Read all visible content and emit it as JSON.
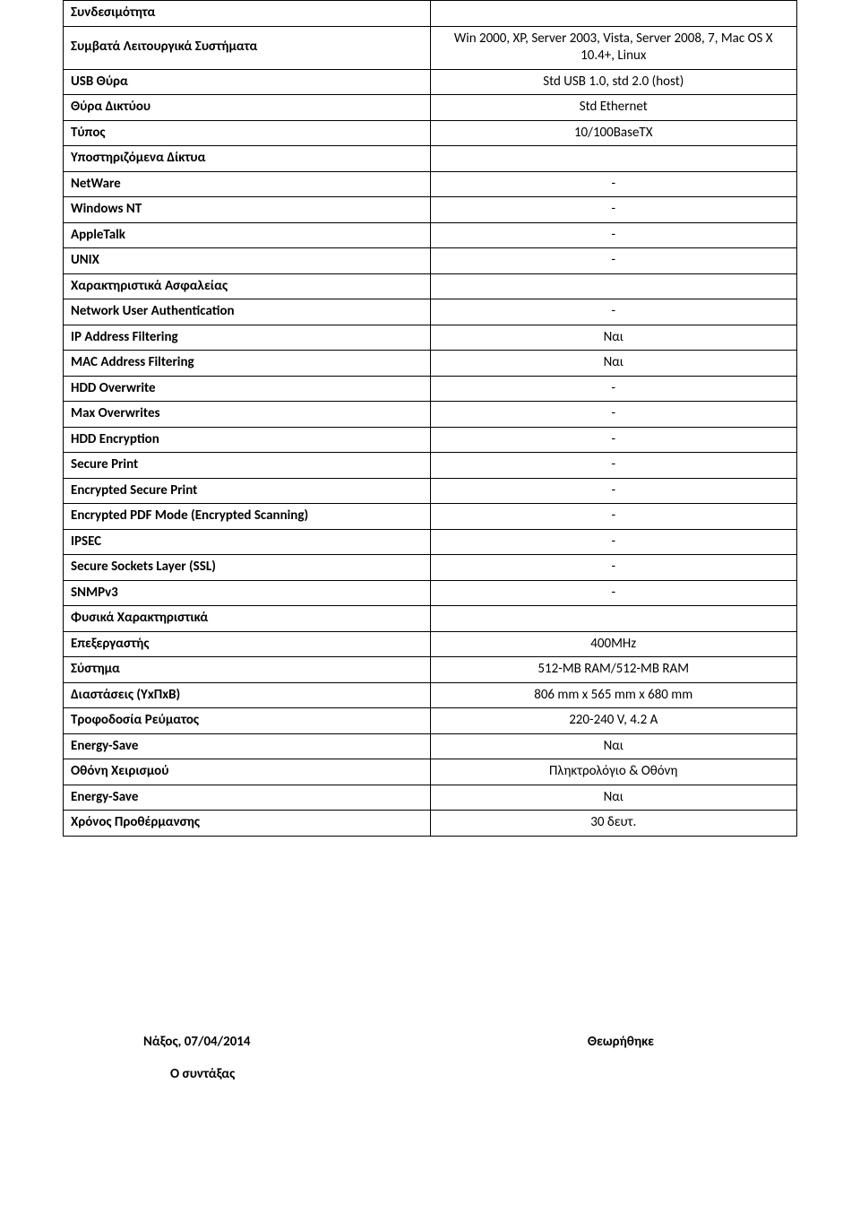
{
  "table": {
    "rows": [
      {
        "label": "Συνδεσιμότητα",
        "value": null
      },
      {
        "label": "Συμβατά Λειτουργικά Συστήματα",
        "value": "Win 2000, XP, Server 2003, Vista, Server 2008, 7, Mac OS X 10.4+, Linux"
      },
      {
        "label": "USB Θύρα",
        "value": "Std USB 1.0, std 2.0 (host)"
      },
      {
        "label": "Θύρα Δικτύου",
        "value": "Std Ethernet"
      },
      {
        "label": "Τύπος",
        "value": "10/100BaseTX"
      },
      {
        "label": "Υποστηριζόμενα Δίκτυα",
        "value": ""
      },
      {
        "label": "NetWare",
        "value": "-"
      },
      {
        "label": "Windows NT",
        "value": "-"
      },
      {
        "label": "AppleTalk",
        "value": "-"
      },
      {
        "label": "UNIX",
        "value": "-"
      },
      {
        "label": "Χαρακτηριστικά Ασφαλείας",
        "value": ""
      },
      {
        "label": "Network User Authentication",
        "value": "-"
      },
      {
        "label": "IP Address Filtering",
        "value": "Ναι"
      },
      {
        "label": "MAC Address Filtering",
        "value": "Ναι"
      },
      {
        "label": "HDD Overwrite",
        "value": "-"
      },
      {
        "label": "Max Overwrites",
        "value": "-"
      },
      {
        "label": "HDD Encryption",
        "value": "-"
      },
      {
        "label": "Secure Print",
        "value": "-"
      },
      {
        "label": "Encrypted Secure Print",
        "value": "-"
      },
      {
        "label": "Encrypted PDF Mode (Encrypted Scanning)",
        "value": "-"
      },
      {
        "label": "IPSEC",
        "value": "-"
      },
      {
        "label": "Secure Sockets Layer (SSL)",
        "value": "-"
      },
      {
        "label": "SNMPv3",
        "value": "-"
      },
      {
        "label": "Φυσικά Χαρακτηριστικά",
        "value": ""
      },
      {
        "label": "Επεξεργαστής",
        "value": "400MHz"
      },
      {
        "label": "Σύστημα",
        "value": "512-MB RAM/512-MB RAM"
      },
      {
        "label": "Διαστάσεις (ΥxΠxΒ)",
        "value": "806 mm x 565 mm x 680 mm"
      },
      {
        "label": "Τροφοδοσία Ρεύματος",
        "value": "220-240 V, 4.2 A"
      },
      {
        "label": "Energy-Save",
        "value": "Ναι"
      },
      {
        "label": "Οθόνη Χειρισμού",
        "value": "Πληκτρολόγιο & Οθόνη"
      },
      {
        "label": "Energy-Save",
        "value": "Ναι"
      },
      {
        "label": "Χρόνος Προθέρμανσης",
        "value": "30 δευτ."
      }
    ]
  },
  "footer": {
    "place_date": "Νάξος, 07/04/2014",
    "approved": "Θεωρήθηκε",
    "author": "Ο συντάξας"
  }
}
